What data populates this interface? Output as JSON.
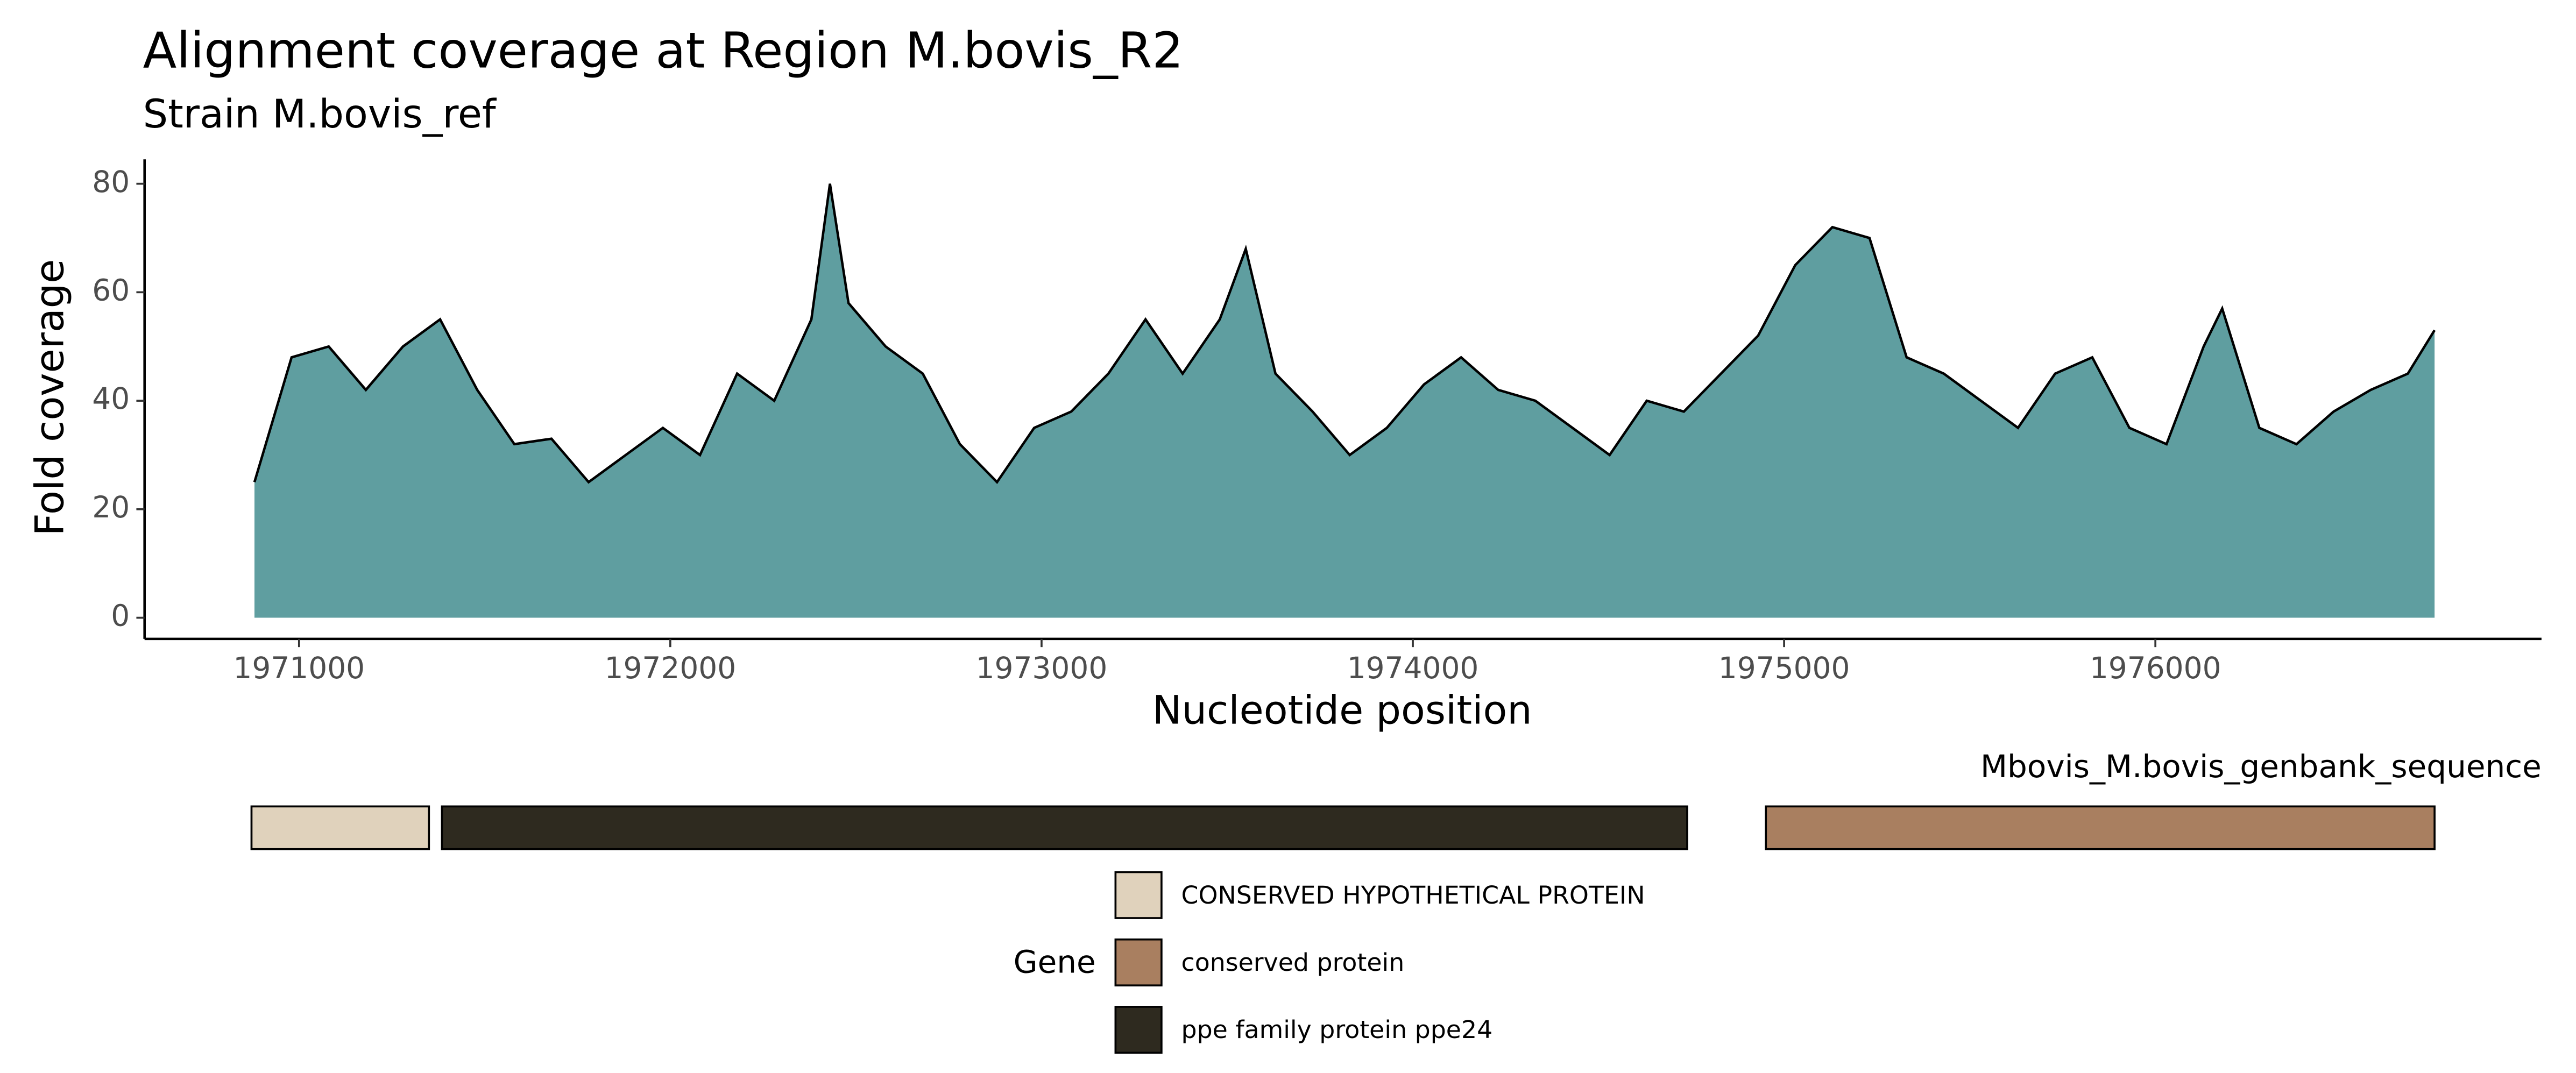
{
  "chart_data": {
    "type": "area",
    "title": "Alignment coverage at Region M.bovis_R2",
    "subtitle": "Strain M.bovis_ref",
    "x_label": "Nucleotide position",
    "y_label": "Fold coverage",
    "color": "#5f9ea0",
    "line_color": "#000000",
    "x": [
      1970880,
      1970980,
      1971080,
      1971180,
      1971280,
      1971380,
      1971480,
      1971580,
      1971680,
      1971780,
      1971880,
      1971980,
      1972080,
      1972180,
      1972280,
      1972380,
      1972430,
      1972480,
      1972580,
      1972680,
      1972780,
      1972880,
      1972980,
      1973080,
      1973180,
      1973280,
      1973380,
      1973480,
      1973550,
      1973630,
      1973730,
      1973830,
      1973930,
      1974030,
      1974130,
      1974230,
      1974330,
      1974430,
      1974530,
      1974630,
      1974730,
      1974830,
      1974930,
      1975030,
      1975130,
      1975230,
      1975330,
      1975430,
      1975530,
      1975630,
      1975730,
      1975830,
      1975930,
      1976030,
      1976130,
      1976180,
      1976280,
      1976380,
      1976480,
      1976580,
      1976680,
      1976752
    ],
    "values": [
      25,
      48,
      50,
      42,
      50,
      55,
      42,
      32,
      33,
      25,
      30,
      35,
      30,
      45,
      40,
      55,
      80,
      58,
      50,
      45,
      32,
      25,
      35,
      38,
      45,
      55,
      45,
      55,
      68,
      45,
      38,
      30,
      35,
      43,
      48,
      42,
      40,
      35,
      30,
      40,
      38,
      45,
      52,
      65,
      72,
      70,
      48,
      45,
      40,
      35,
      45,
      48,
      35,
      32,
      50,
      57,
      35,
      32,
      38,
      42,
      45,
      53
    ],
    "xlim": [
      1970584,
      1977040
    ],
    "ylim": [
      -3.9,
      84.5
    ],
    "xticks": [
      1971000,
      1972000,
      1973000,
      1974000,
      1975000,
      1976000
    ],
    "yticks": [
      0,
      20,
      40,
      60,
      80
    ],
    "track_label": "Mbovis_M.bovis_genbank_sequence",
    "legend_title": "Gene",
    "genes": [
      {
        "name": "CONSERVED HYPOTHETICAL PROTEIN",
        "color": "#e0d2bc",
        "start": 1970872,
        "end": 1971350
      },
      {
        "name": "conserved protein",
        "color": "#a97f60",
        "start": 1974951,
        "end": 1976752
      },
      {
        "name": "ppe family protein ppe24",
        "color": "#2e2a1f",
        "start": 1971385,
        "end": 1974739
      }
    ]
  }
}
